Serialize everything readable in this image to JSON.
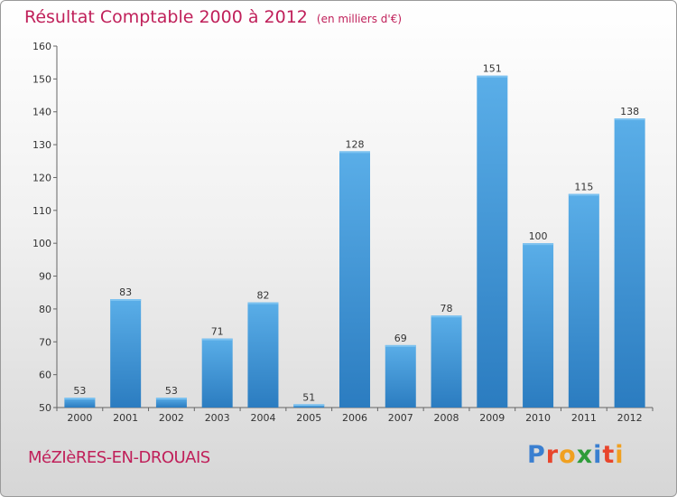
{
  "header": {
    "title": "Résultat Comptable 2000 à 2012",
    "unit": "(en milliers d'€)"
  },
  "footer": {
    "town": "MéZIèRES-EN-DROUAIS",
    "logo": "Proxiti",
    "logo_colors": [
      "#3a7fd0",
      "#e8452c",
      "#f0a020",
      "#2e9c3a",
      "#3a7fd0",
      "#e8452c",
      "#f0a020"
    ]
  },
  "colors": {
    "bar_light": "#5aaee8",
    "bar_dark": "#2b7cc0",
    "title": "#c0205a"
  },
  "chart_data": {
    "type": "bar",
    "title": "Résultat Comptable 2000 à 2012",
    "xlabel": "",
    "ylabel": "",
    "categories": [
      "2000",
      "2001",
      "2002",
      "2003",
      "2004",
      "2005",
      "2006",
      "2007",
      "2008",
      "2009",
      "2010",
      "2011",
      "2012"
    ],
    "values": [
      53,
      83,
      53,
      71,
      82,
      51,
      128,
      69,
      78,
      151,
      100,
      115,
      138
    ],
    "ylim": [
      50,
      160
    ],
    "yticks": [
      50,
      60,
      70,
      80,
      90,
      100,
      110,
      120,
      130,
      140,
      150,
      160
    ],
    "grid": false,
    "legend": "none"
  }
}
